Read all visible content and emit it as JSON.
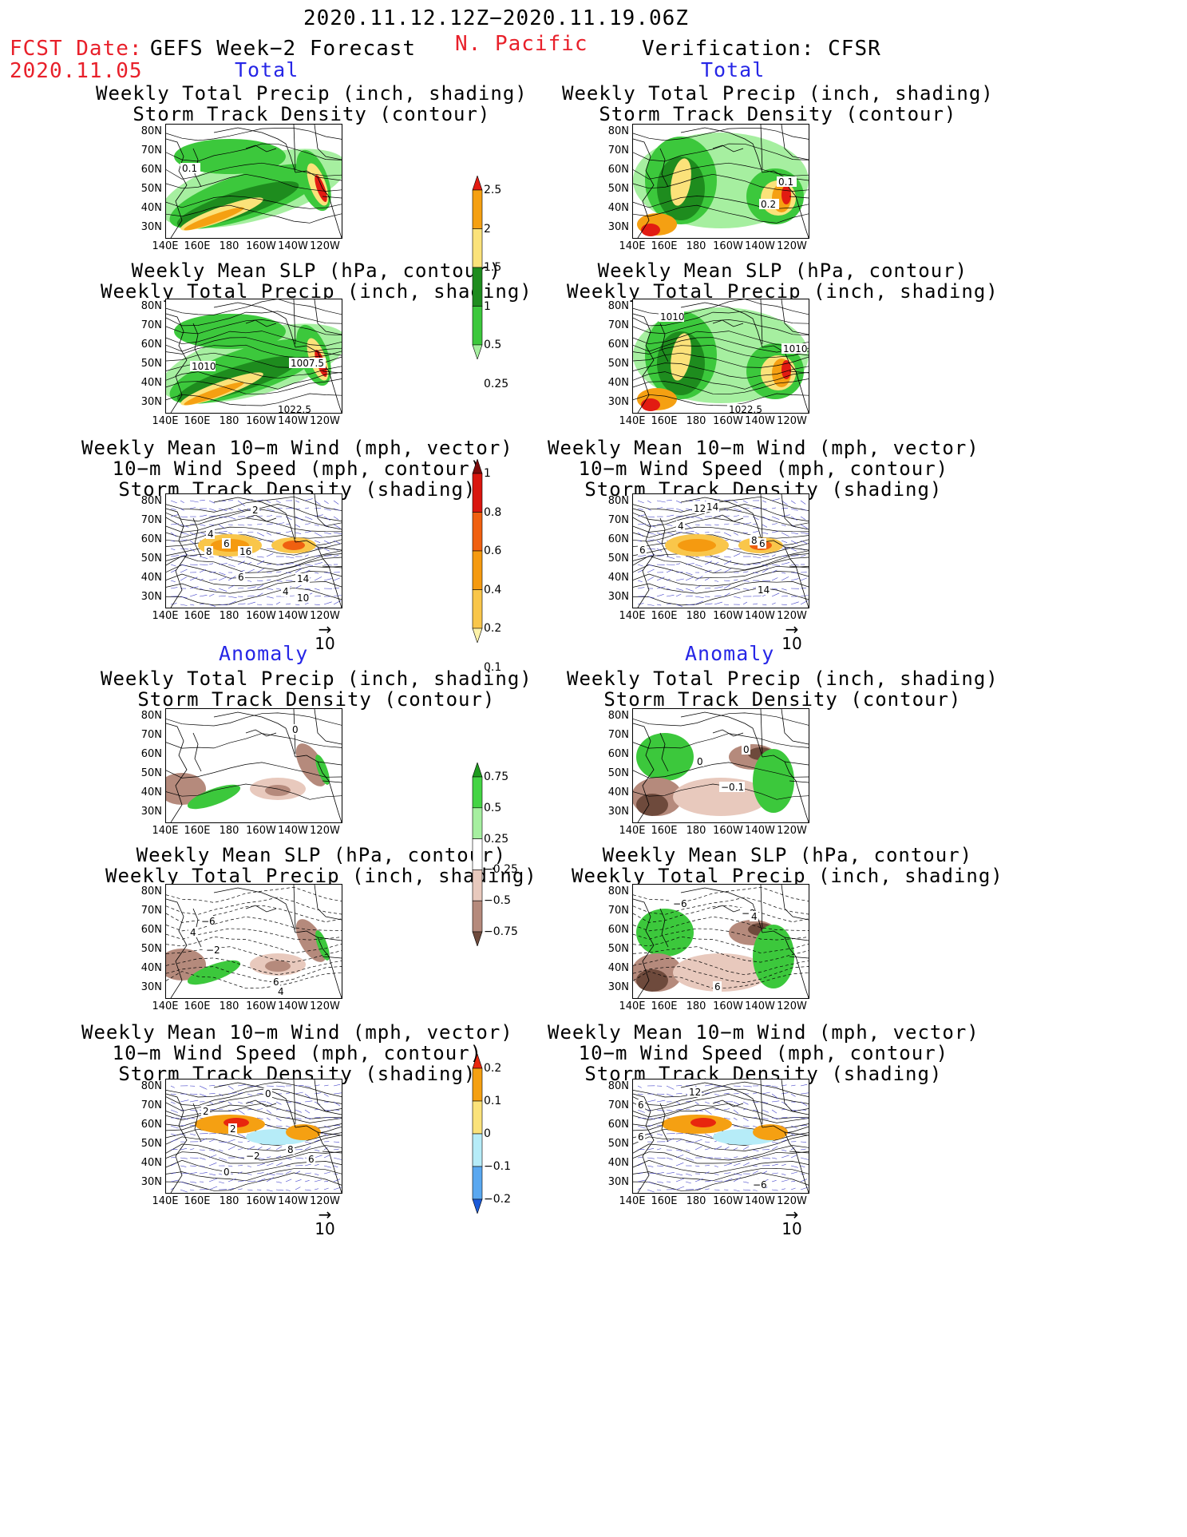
{
  "header": {
    "period": "2020.11.12.12Z−2020.11.19.06Z",
    "fcst_date_label": "FCST Date:",
    "fcst_date_value": "2020.11.05",
    "region": "N. Pacific",
    "left_title": "GEFS Week−2 Forecast",
    "right_title": "Verification: CFSR"
  },
  "sections": {
    "total": "Total",
    "anomaly": "Anomaly"
  },
  "panel_titles": {
    "precip_storm": [
      "Weekly Total Precip (inch, shading)",
      "Storm Track Density (contour)"
    ],
    "slp_precip": [
      "Weekly Mean SLP (hPa, contour)",
      "Weekly Total Precip (inch, shading)"
    ],
    "wind_storm": [
      "Weekly Mean 10−m Wind (mph, vector)",
      "10−m Wind Speed (mph, contour)",
      "Storm Track Density (shading)"
    ]
  },
  "axes": {
    "lat": [
      "80N",
      "70N",
      "60N",
      "50N",
      "40N",
      "30N"
    ],
    "lon": [
      "140E",
      "160E",
      "180",
      "160W",
      "140W",
      "120W"
    ]
  },
  "vector_ref": "10",
  "colorbars": {
    "precip_total": {
      "labels": [
        "2.5",
        "2",
        "1.5",
        "1",
        "0.5",
        "0.25"
      ],
      "colors": [
        "#e21b12",
        "#f5a012",
        "#fbe27a",
        "#1e8c1e",
        "#3cc83c",
        "#a6efa0"
      ]
    },
    "storm_total": {
      "labels": [
        "1",
        "0.8",
        "0.6",
        "0.4",
        "0.2",
        "0.1"
      ],
      "colors": [
        "#7d0a0a",
        "#d9160e",
        "#f06010",
        "#f59a10",
        "#f9c64a",
        "#fdf2a8"
      ]
    },
    "precip_anom": {
      "labels": [
        "0.75",
        "0.5",
        "0.25",
        "−0.25",
        "−0.5",
        "−0.75"
      ],
      "colors": [
        "#1e9b1e",
        "#44d444",
        "#a6efa0",
        "#ffffff",
        "#e8c9bd",
        "#b58a7c",
        "#6e4a3c"
      ]
    },
    "storm_anom": {
      "labels": [
        "0.2",
        "0.1",
        "0",
        "−0.1",
        "−0.2"
      ],
      "colors": [
        "#e8260e",
        "#f5a012",
        "#fbe27a",
        "#b6ecf8",
        "#5aa8f0",
        "#1a5ad8"
      ]
    }
  },
  "map_labels": {
    "L1": [
      "0.1"
    ],
    "R1": [
      "0.1",
      "0.2"
    ],
    "L2": [
      "1010",
      "1007.5",
      "1022.5"
    ],
    "R2": [
      "1010",
      "1010",
      "1022.5"
    ],
    "L3": [
      "2",
      "4",
      "6",
      "8",
      "16",
      "14",
      "4",
      "10",
      "6"
    ],
    "R3": [
      "12",
      "14",
      "4",
      "6",
      "8",
      "6",
      "14"
    ],
    "L4": [
      "0"
    ],
    "R4": [
      "0",
      "0",
      "−0.1"
    ],
    "L5": [
      "−6",
      "4",
      "−2",
      "6",
      "4"
    ],
    "R5": [
      "−6",
      "−2",
      "4",
      "6"
    ],
    "L6": [
      "0",
      "2",
      "2",
      "−2",
      "0",
      "8",
      "6"
    ],
    "R6": [
      "12",
      "6",
      "6",
      "−6"
    ]
  },
  "colors": {
    "title_red": "#e8202a",
    "section_blue": "#2626e6",
    "wind_vector": "#4040c8"
  }
}
